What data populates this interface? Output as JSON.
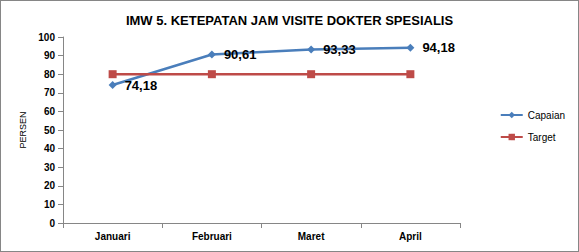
{
  "chart_data": {
    "type": "line",
    "title": "IMW 5. KETEPATAN JAM VISITE DOKTER SPESIALIS",
    "y_label": "PERSEN",
    "categories": [
      "Januari",
      "Februari",
      "Maret",
      "April"
    ],
    "series": [
      {
        "name": "Capaian",
        "color": "#4a7ebb",
        "marker": "diamond",
        "line_style": "solid",
        "values": [
          74.18,
          90.61,
          93.33,
          94.18
        ],
        "data_labels": true,
        "value_labels": [
          "74,18",
          "90,61",
          "93,33",
          "94,18"
        ]
      },
      {
        "name": "Target",
        "color": "#be4b48",
        "marker": "square",
        "line_style": "solid",
        "values": [
          80,
          80,
          80,
          80
        ],
        "data_labels": false
      }
    ],
    "ylim": [
      0,
      100
    ],
    "yticks": [
      0,
      10,
      20,
      30,
      40,
      50,
      60,
      70,
      80,
      90,
      100
    ],
    "grid": false,
    "legend": "right"
  }
}
